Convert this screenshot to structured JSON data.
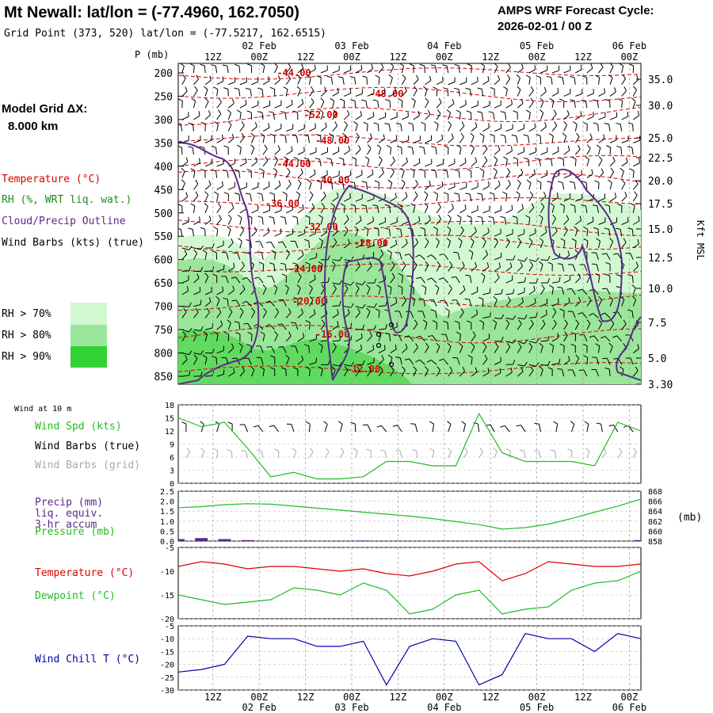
{
  "header": {
    "station_title": "Mt Newall:  lat/lon = (-77.4960, 162.7050)",
    "grid_point": "Grid Point (373, 520) lat/lon = (-77.5217, 162.6515)",
    "cycle_label": "AMPS WRF Forecast Cycle:",
    "cycle_value": "2026-02-01 / 00  Z"
  },
  "left_labels": {
    "model_grid": "Model Grid ΔX:",
    "model_res": "8.000 km",
    "temperature": "Temperature (°C)",
    "rh": "RH (%, WRT liq. wat.)",
    "cloud": "Cloud/Precip Outline",
    "barbs": "Wind Barbs (kts) (true)",
    "rh_legend": [
      {
        "label": "RH > 70%",
        "color": "#d2f8d2"
      },
      {
        "label": "RH > 80%",
        "color": "#9ae69a"
      },
      {
        "label": "RH > 90%",
        "color": "#32d232"
      }
    ]
  },
  "time_axis": {
    "hour_ticks": [
      "12Z",
      "00Z",
      "12Z",
      "00Z",
      "12Z",
      "00Z",
      "12Z",
      "00Z",
      "12Z",
      "00Z"
    ],
    "date_labels": [
      "02 Feb",
      "03 Feb",
      "04 Feb",
      "05 Feb",
      "06 Feb"
    ]
  },
  "colors": {
    "temperature": "#dd0000",
    "rh_line": "#228b22",
    "cloud": "#5a2a8a",
    "dewpoint": "#22bb22",
    "windchill": "#0000aa",
    "precip": "#5a2a8a",
    "wind_grid": "#aaaaaa",
    "grid": "#999999"
  },
  "chart_data": [
    {
      "type": "heatmap",
      "name": "upper-air cross section",
      "pressure_label": "P (mb)",
      "right_axis_label": "Kft MSL",
      "pressure_levels": [
        "200",
        "250",
        "300",
        "350",
        "400",
        "450",
        "500",
        "550",
        "600",
        "650",
        "700",
        "750",
        "800",
        "850"
      ],
      "height_kft": [
        "35.0",
        "30.0",
        "25.0",
        "22.5",
        "20.0",
        "17.5",
        "15.0",
        "12.5",
        "10.0",
        "7.5",
        "5.0",
        "3.30"
      ],
      "temperature_contours": [
        {
          "label": "-44.00",
          "temp": -44,
          "p": 200,
          "h": 30
        },
        {
          "label": "-48.00",
          "temp": -48,
          "p": 245,
          "h": 54
        },
        {
          "label": "-52.00",
          "temp": -52,
          "p": 290,
          "h": 37
        },
        {
          "label": "-48.00",
          "temp": -48,
          "p": 345,
          "h": 40
        },
        {
          "label": "-44.00",
          "temp": -44,
          "p": 395,
          "h": 30
        },
        {
          "label": "-40.00",
          "temp": -40,
          "p": 430,
          "h": 40
        },
        {
          "label": "-36.00",
          "temp": -36,
          "p": 480,
          "h": 27
        },
        {
          "label": "-32.00",
          "temp": -32,
          "p": 530,
          "h": 37
        },
        {
          "label": "-28.00",
          "temp": -28,
          "p": 565,
          "h": 50
        },
        {
          "label": "-24.00",
          "temp": -24,
          "p": 620,
          "h": 33
        },
        {
          "label": "-20.00",
          "temp": -20,
          "p": 690,
          "h": 34
        },
        {
          "label": "-16.00",
          "temp": -16,
          "p": 760,
          "h": 40
        },
        {
          "label": "-12.00",
          "temp": -12,
          "p": 835,
          "h": 48
        }
      ]
    },
    {
      "type": "line",
      "name": "10 m wind speed",
      "header_label": "Wind at 10 m",
      "labels": [
        "Wind Spd (kts)",
        "Wind Barbs (true)",
        "Wind Barbs (grid)"
      ],
      "ylim": [
        0,
        18
      ],
      "yticks": [
        "0",
        "3",
        "6",
        "9",
        "12",
        "15",
        "18"
      ],
      "x": [
        0,
        6,
        12,
        18,
        24,
        30,
        36,
        42,
        48,
        54,
        60,
        66,
        72,
        78,
        84,
        90,
        96,
        102,
        108,
        114,
        120
      ],
      "values": [
        15,
        13,
        14,
        8,
        1.5,
        2.5,
        1,
        1,
        1.5,
        5,
        5,
        4,
        4,
        16,
        7,
        5,
        5,
        5,
        4,
        14,
        12
      ]
    },
    {
      "type": "line",
      "name": "precip and pressure",
      "labels": [
        "Precip (mm)",
        "liq. equiv.",
        "3-hr accum",
        "Pressure (mb)"
      ],
      "right_unit": "(mb)",
      "precip_ylim": [
        0,
        2.5
      ],
      "precip_yticks": [
        "0.0",
        "0.5",
        "1.0",
        "1.5",
        "2.0",
        "2.5"
      ],
      "pressure_ylim": [
        858,
        868
      ],
      "pressure_yticks": [
        "858",
        "860",
        "862",
        "864",
        "866",
        "868"
      ],
      "x": [
        0,
        6,
        12,
        18,
        24,
        30,
        36,
        42,
        48,
        54,
        60,
        66,
        72,
        78,
        84,
        90,
        96,
        102,
        108,
        114,
        120
      ],
      "pressure": [
        864.7,
        864.9,
        865.3,
        865.5,
        865.4,
        865.0,
        864.6,
        864.2,
        863.8,
        863.4,
        863.0,
        862.5,
        861.9,
        861.3,
        860.4,
        860.7,
        861.4,
        862.5,
        863.8,
        865.0,
        866.4
      ],
      "precip": [
        0.1,
        0.15,
        0.1,
        0.05,
        0,
        0,
        0,
        0,
        0.03,
        0,
        0,
        0,
        0,
        0,
        0,
        0,
        0,
        0,
        0,
        0,
        0.05
      ]
    },
    {
      "type": "line",
      "name": "temperature and dewpoint",
      "labels": [
        "Temperature (°C)",
        "Dewpoint (°C)"
      ],
      "ylim": [
        -20,
        -5
      ],
      "yticks": [
        "-5",
        "-10",
        "-15",
        "-20"
      ],
      "x": [
        0,
        6,
        12,
        18,
        24,
        30,
        36,
        42,
        48,
        54,
        60,
        66,
        72,
        78,
        84,
        90,
        96,
        102,
        108,
        114,
        120
      ],
      "temperature": [
        -9,
        -8,
        -8.5,
        -9.5,
        -9,
        -9,
        -9.5,
        -10,
        -9.5,
        -10.5,
        -11,
        -10,
        -8.5,
        -8,
        -12,
        -10.5,
        -8,
        -8.5,
        -9,
        -9,
        -8.5
      ],
      "dewpoint": [
        -15,
        -16,
        -17,
        -16.5,
        -16,
        -13.5,
        -14,
        -15,
        -12.5,
        -14,
        -19,
        -18,
        -15,
        -14,
        -19,
        -18,
        -17.5,
        -14,
        -12.5,
        -12,
        -10
      ]
    },
    {
      "type": "line",
      "name": "wind chill",
      "labels": [
        "Wind Chill T (°C)"
      ],
      "ylim": [
        -30,
        -5
      ],
      "yticks": [
        "-5",
        "-10",
        "-15",
        "-20",
        "-25",
        "-30"
      ],
      "x": [
        0,
        6,
        12,
        18,
        24,
        30,
        36,
        42,
        48,
        54,
        60,
        66,
        72,
        78,
        84,
        90,
        96,
        102,
        108,
        114,
        120
      ],
      "values": [
        -23,
        -22,
        -20,
        -9,
        -10,
        -10,
        -13,
        -13,
        -11,
        -28,
        -13,
        -10,
        -11,
        -28,
        -24,
        -8,
        -10,
        -10,
        -15,
        -8,
        -10
      ]
    }
  ]
}
